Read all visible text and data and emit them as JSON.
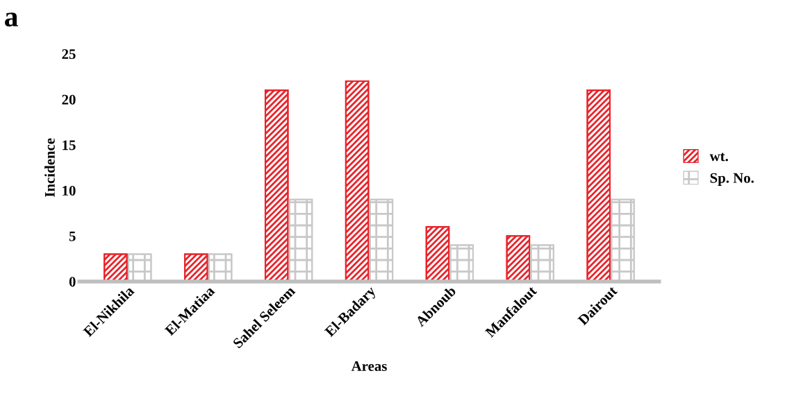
{
  "chart_data": {
    "type": "bar",
    "xlabel": "Areas",
    "ylabel": "Incidence",
    "annotations": [
      "a"
    ],
    "categories": [
      "El-Nikhila",
      "El-Matiaa",
      "Sahel Seleem",
      "El-Badary",
      "Abnoub",
      "Manfalout",
      "Dairout"
    ],
    "series": [
      {
        "name": "wt.",
        "color": "#e8232a",
        "values": [
          3,
          3,
          21,
          22,
          6,
          5,
          21
        ]
      },
      {
        "name": "Sp. No.",
        "color": "#c8c8c8",
        "values": [
          3,
          3,
          9,
          9,
          4,
          4,
          9
        ]
      }
    ],
    "ylim": [
      0,
      25
    ],
    "yticks": [
      0,
      5,
      10,
      15,
      20,
      25
    ],
    "grid": false,
    "legend": "right"
  }
}
